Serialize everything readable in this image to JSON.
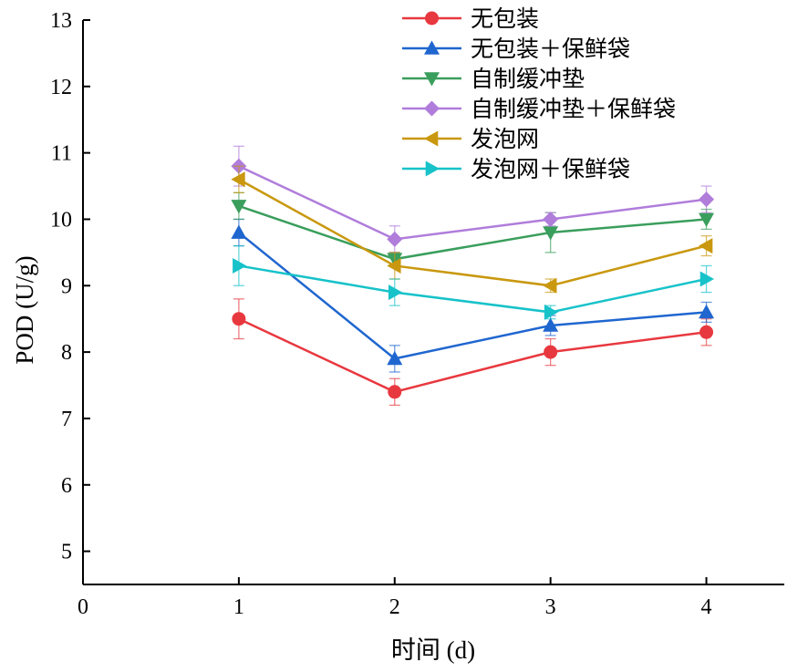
{
  "chart_data": {
    "type": "line",
    "xlabel": "时间 (d)",
    "ylabel": "POD (U/g)",
    "xlim": [
      0,
      4.5
    ],
    "ylim": [
      4.5,
      13
    ],
    "x_ticks": [
      0,
      1,
      2,
      3,
      4
    ],
    "y_ticks": [
      5,
      6,
      7,
      8,
      9,
      10,
      11,
      12,
      13
    ],
    "legend_position": "top-right",
    "grid": false,
    "x": [
      1,
      2,
      3,
      4
    ],
    "series": [
      {
        "name": "无包装",
        "color": "#e8383f",
        "marker": "circle",
        "values": [
          8.5,
          7.4,
          8.0,
          8.3
        ],
        "errors": [
          0.3,
          0.2,
          0.2,
          0.2
        ]
      },
      {
        "name": "无包装＋保鲜袋",
        "color": "#1f66cf",
        "marker": "triangle-up",
        "values": [
          9.8,
          7.9,
          8.4,
          8.6
        ],
        "errors": [
          0.2,
          0.2,
          0.15,
          0.15
        ]
      },
      {
        "name": "自制缓冲垫",
        "color": "#3a9e5c",
        "marker": "triangle-down",
        "values": [
          10.2,
          9.4,
          9.8,
          10.0
        ],
        "errors": [
          0.2,
          0.1,
          0.3,
          0.15
        ]
      },
      {
        "name": "自制缓冲垫＋保鲜袋",
        "color": "#b07ddb",
        "marker": "diamond",
        "values": [
          10.8,
          9.7,
          10.0,
          10.3
        ],
        "errors": [
          0.3,
          0.2,
          0.1,
          0.2
        ]
      },
      {
        "name": "发泡网",
        "color": "#c9980f",
        "marker": "triangle-left",
        "values": [
          10.6,
          9.3,
          9.0,
          9.6
        ],
        "errors": [
          0.2,
          0.2,
          0.1,
          0.15
        ]
      },
      {
        "name": "发泡网＋保鲜袋",
        "color": "#17c2c9",
        "marker": "triangle-right",
        "values": [
          9.3,
          8.9,
          8.6,
          9.1
        ],
        "errors": [
          0.3,
          0.2,
          0.1,
          0.2
        ]
      }
    ]
  }
}
